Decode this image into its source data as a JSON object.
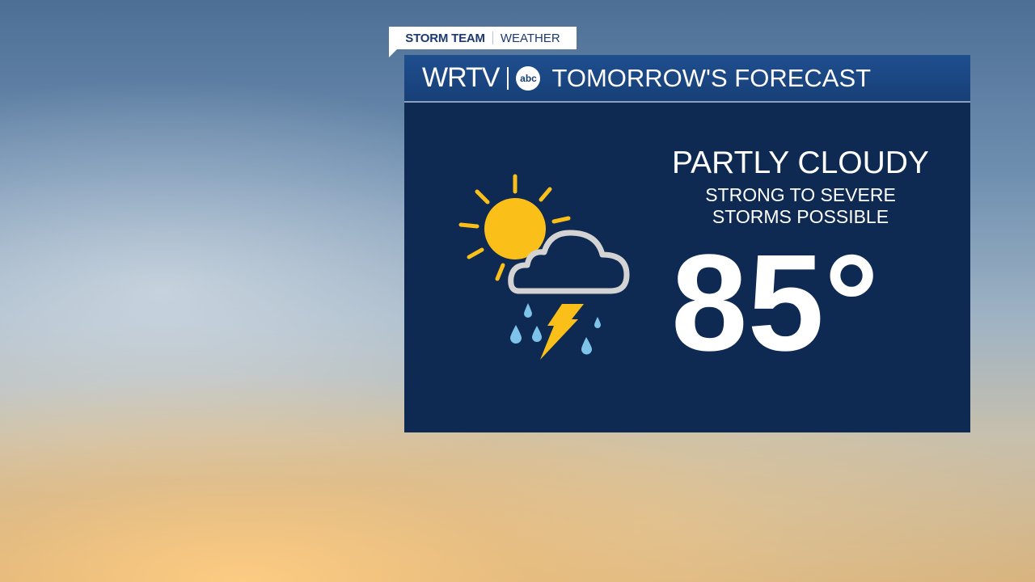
{
  "tag": {
    "left": "STORM TEAM",
    "right": "WEATHER"
  },
  "header": {
    "station": "WRTV",
    "network_logo": "abc",
    "title": "TOMORROW'S FORECAST"
  },
  "forecast": {
    "condition": "PARTLY CLOUDY",
    "detail_line1": "STRONG TO SEVERE",
    "detail_line2": "STORMS POSSIBLE",
    "temperature": "85°",
    "icon": "partly-cloudy-thunderstorm-icon"
  },
  "colors": {
    "panel": "#0e2a52",
    "header": "#1f4f8f",
    "sun": "#fbbf1a",
    "cloud": "#d3d3d3",
    "rain": "#7ec3ea"
  }
}
